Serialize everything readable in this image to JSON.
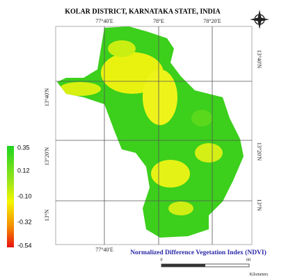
{
  "title": "KOLAR DISTRICT, KARNATAKA STATE, INDIA",
  "top_labels": [
    "77°40'E",
    "78°E",
    "78°20'E"
  ],
  "bottom_labels": [
    "77°40'E"
  ],
  "left_labels": [
    "13°40'N",
    "13°20'N",
    "13°N"
  ],
  "right_labels": [
    "13°40'N",
    "13°20'N",
    "13°N"
  ],
  "legend": {
    "labels": [
      "0.35",
      "0.12",
      "-0.10",
      "-0.32",
      "-0.54"
    ]
  },
  "subtitle": "Normalized Difference Vegetation Index (NDVI)",
  "scale_bar": {
    "start": "0",
    "end": "60",
    "unit": "Kilometers"
  }
}
